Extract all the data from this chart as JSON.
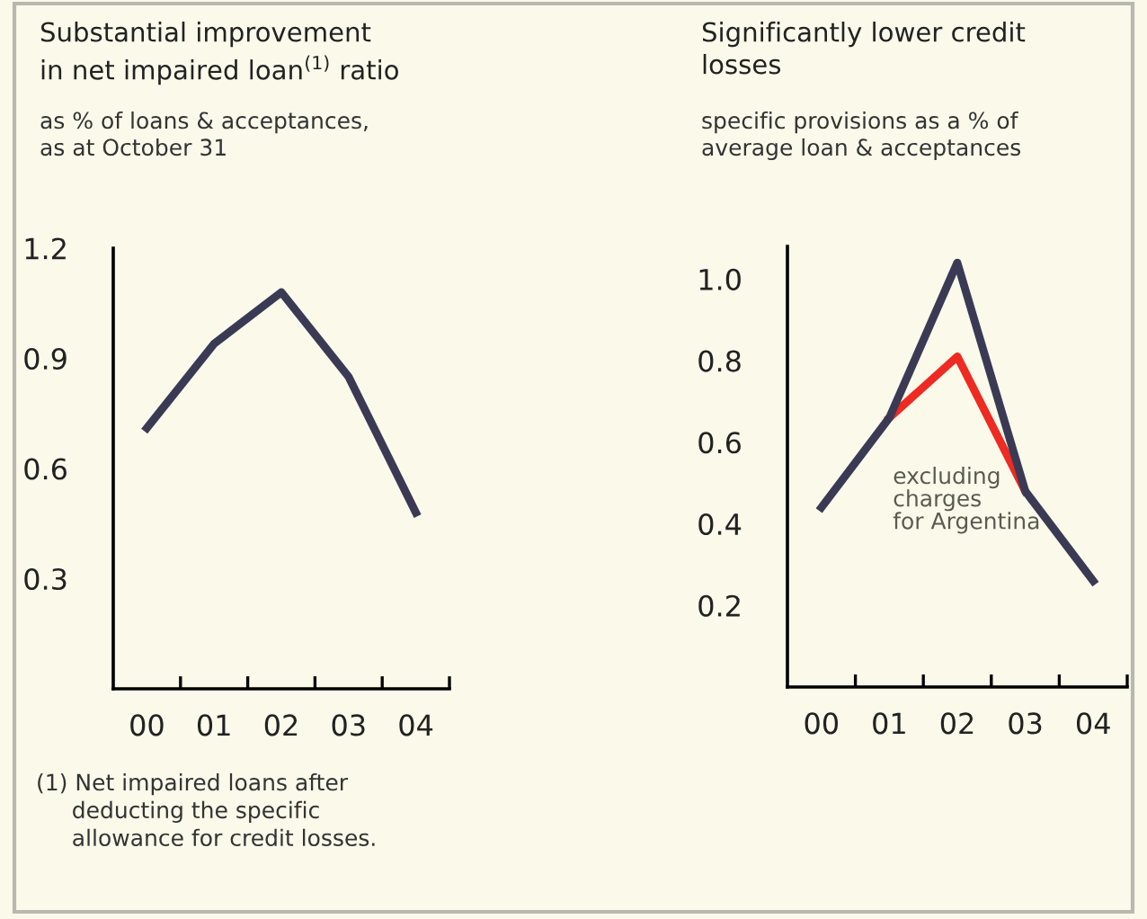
{
  "chart_data": [
    {
      "type": "line",
      "title": "Substantial improvement\nin net impaired loan$^{(1)}$ ratio",
      "subtitle": "as % of loans & acceptances,\nas at October 31",
      "categories": [
        "00",
        "01",
        "02",
        "03",
        "04"
      ],
      "series": [
        {
          "color": "#3b3a55",
          "values": [
            0.71,
            0.94,
            1.08,
            0.85,
            0.48
          ]
        }
      ],
      "ylim": [
        0,
        1.2
      ],
      "yticks": [
        0.3,
        0.6,
        0.9,
        1.2
      ],
      "grid": false,
      "legend": false,
      "marker": "none",
      "line_style": "solid",
      "annotations": [
        "(1) Net impaired loans after\n     deducting the specific\n     allowance for credit losses."
      ]
    },
    {
      "type": "line",
      "title": "Significantly lower credit\nlosses",
      "subtitle": "specific provisions as a % of\naverage loan & acceptances",
      "categories": [
        "00",
        "01",
        "02",
        "03",
        "04"
      ],
      "series": [
        {
          "name": "excluding\ncharges\nfor Argentina",
          "color": "#ee2a22",
          "values": [
            null,
            0.66,
            0.81,
            0.48,
            null
          ]
        },
        {
          "color": "#3b3a55",
          "values": [
            0.44,
            0.66,
            1.04,
            0.48,
            0.26
          ]
        }
      ],
      "ylim": [
        0,
        1.08
      ],
      "yticks": [
        0.2,
        0.4,
        0.6,
        0.8,
        {
          "value": 1,
          "label": "1.0"
        }
      ],
      "grid": false,
      "legend": false,
      "marker": "none",
      "line_style": "solid"
    }
  ]
}
